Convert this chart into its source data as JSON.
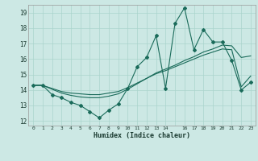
{
  "xlabel": "Humidex (Indice chaleur)",
  "bg_color": "#cce8e4",
  "grid_color": "#aad4cc",
  "line_color": "#1a6b5a",
  "xlim": [
    -0.5,
    23.5
  ],
  "ylim": [
    11.7,
    19.5
  ],
  "xtick_vals": [
    0,
    1,
    2,
    3,
    4,
    5,
    6,
    7,
    8,
    9,
    10,
    11,
    12,
    13,
    14,
    15,
    16,
    17,
    18,
    19,
    20,
    21,
    22,
    23
  ],
  "xtick_labels": [
    "0",
    "1",
    "2",
    "3",
    "4",
    "5",
    "6",
    "7",
    "8",
    "9",
    "10",
    "11",
    "12",
    "13",
    "14",
    "",
    "16",
    "17",
    "18",
    "19",
    "20",
    "21",
    "22",
    "23"
  ],
  "yticks": [
    12,
    13,
    14,
    15,
    16,
    17,
    18,
    19
  ],
  "series1_x": [
    0,
    1,
    2,
    3,
    4,
    5,
    6,
    7,
    8,
    9,
    10,
    11,
    12,
    13,
    14,
    15,
    16,
    17,
    18,
    19,
    20,
    21,
    22,
    23
  ],
  "series1_y": [
    14.3,
    14.3,
    13.7,
    13.5,
    13.2,
    13.0,
    12.6,
    12.2,
    12.7,
    13.1,
    14.1,
    15.5,
    16.1,
    17.5,
    14.1,
    18.3,
    19.3,
    16.6,
    17.9,
    17.1,
    17.1,
    15.9,
    14.0,
    14.5
  ],
  "series2_x": [
    0,
    1,
    2,
    3,
    4,
    5,
    6,
    7,
    8,
    9,
    10,
    11,
    12,
    13,
    14,
    15,
    16,
    17,
    18,
    19,
    20,
    21,
    22,
    23
  ],
  "series2_y": [
    14.3,
    14.3,
    14.05,
    13.8,
    13.65,
    13.55,
    13.5,
    13.5,
    13.6,
    13.75,
    14.05,
    14.4,
    14.75,
    15.1,
    15.35,
    15.6,
    15.9,
    16.15,
    16.45,
    16.65,
    16.9,
    16.85,
    16.1,
    16.2
  ],
  "series3_x": [
    0,
    1,
    2,
    3,
    4,
    5,
    6,
    7,
    8,
    9,
    10,
    11,
    12,
    13,
    14,
    15,
    16,
    17,
    18,
    19,
    20,
    21,
    22,
    23
  ],
  "series3_y": [
    14.3,
    14.3,
    14.1,
    13.9,
    13.8,
    13.75,
    13.7,
    13.7,
    13.8,
    13.9,
    14.15,
    14.45,
    14.75,
    15.05,
    15.25,
    15.5,
    15.75,
    16.0,
    16.25,
    16.45,
    16.65,
    16.6,
    14.2,
    14.9
  ]
}
